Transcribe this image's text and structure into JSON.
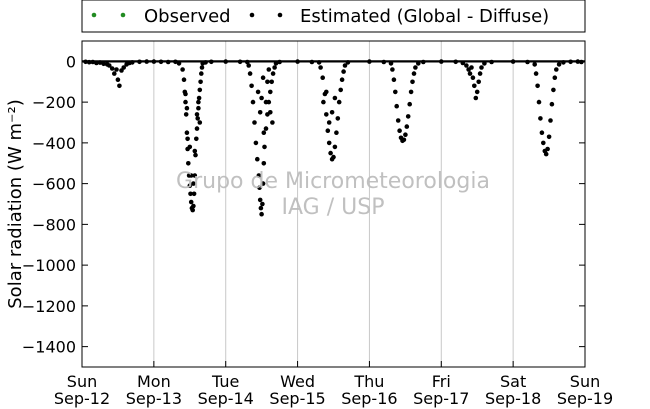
{
  "chart_data": {
    "type": "scatter",
    "title": "",
    "xlabel": "",
    "ylabel": "Solar radiation (W m⁻²)",
    "ylim": [
      -1500,
      100
    ],
    "xlim": [
      0,
      7
    ],
    "yticks": [
      0,
      -200,
      -400,
      -600,
      -800,
      -1000,
      -1200,
      -1400
    ],
    "xticks": [
      {
        "x": 0,
        "line1": "Sun",
        "line2": "Sep-12"
      },
      {
        "x": 1,
        "line1": "Mon",
        "line2": "Sep-13"
      },
      {
        "x": 2,
        "line1": "Tue",
        "line2": "Sep-14"
      },
      {
        "x": 3,
        "line1": "Wed",
        "line2": "Sep-15"
      },
      {
        "x": 4,
        "line1": "Thu",
        "line2": "Sep-16"
      },
      {
        "x": 5,
        "line1": "Fri",
        "line2": "Sep-17"
      },
      {
        "x": 6,
        "line1": "Sat",
        "line2": "Sep-18"
      },
      {
        "x": 7,
        "line1": "Sun",
        "line2": "Sep-19"
      }
    ],
    "grid": "vertical",
    "legend_position": "top",
    "legend": [
      {
        "label": "Observed",
        "color": "#228b22"
      },
      {
        "label": "Estimated (Global - Diffuse)",
        "color": "#000000"
      }
    ],
    "watermark": [
      "Grupo de Micrometeorologia",
      "IAG / USP"
    ],
    "series": [
      {
        "name": "Estimated (Global - Diffuse)",
        "color": "#000000",
        "points": [
          [
            0.05,
            -2
          ],
          [
            0.1,
            -4
          ],
          [
            0.15,
            -3
          ],
          [
            0.2,
            -8
          ],
          [
            0.25,
            -6
          ],
          [
            0.3,
            -12
          ],
          [
            0.35,
            -15
          ],
          [
            0.38,
            -20
          ],
          [
            0.42,
            -35
          ],
          [
            0.45,
            -60
          ],
          [
            0.48,
            -40
          ],
          [
            0.5,
            -90
          ],
          [
            0.52,
            -120
          ],
          [
            0.55,
            -45
          ],
          [
            0.58,
            -30
          ],
          [
            0.62,
            -15
          ],
          [
            0.66,
            -8
          ],
          [
            0.7,
            -5
          ],
          [
            0.8,
            -2
          ],
          [
            0.9,
            -1
          ],
          [
            1.0,
            -1
          ],
          [
            1.1,
            -2
          ],
          [
            1.2,
            -3
          ],
          [
            1.3,
            -2
          ],
          [
            1.35,
            -10
          ],
          [
            1.4,
            -40
          ],
          [
            1.42,
            -90
          ],
          [
            1.43,
            -150
          ],
          [
            1.44,
            -200
          ],
          [
            1.45,
            -260
          ],
          [
            1.46,
            -350
          ],
          [
            1.47,
            -430
          ],
          [
            1.48,
            -500
          ],
          [
            1.49,
            -560
          ],
          [
            1.5,
            -610
          ],
          [
            1.51,
            -650
          ],
          [
            1.52,
            -690
          ],
          [
            1.53,
            -720
          ],
          [
            1.54,
            -730
          ],
          [
            1.55,
            -710
          ],
          [
            1.56,
            -650
          ],
          [
            1.57,
            -560
          ],
          [
            1.58,
            -460
          ],
          [
            1.59,
            -380
          ],
          [
            1.6,
            -330
          ],
          [
            1.61,
            -280
          ],
          [
            1.62,
            -230
          ],
          [
            1.63,
            -180
          ],
          [
            1.64,
            -140
          ],
          [
            1.65,
            -100
          ],
          [
            1.66,
            -60
          ],
          [
            1.67,
            -30
          ],
          [
            1.68,
            -10
          ],
          [
            1.72,
            -5
          ],
          [
            1.8,
            -2
          ],
          [
            1.47,
            -380
          ],
          [
            1.5,
            -420
          ],
          [
            1.52,
            -560
          ],
          [
            1.55,
            -600
          ],
          [
            1.57,
            -440
          ],
          [
            1.6,
            -260
          ],
          [
            1.62,
            -200
          ],
          [
            1.64,
            -300
          ],
          [
            1.44,
            -160
          ],
          [
            1.46,
            -230
          ],
          [
            2.0,
            -1
          ],
          [
            2.2,
            -2
          ],
          [
            2.3,
            -3
          ],
          [
            2.32,
            -20
          ],
          [
            2.34,
            -60
          ],
          [
            2.36,
            -120
          ],
          [
            2.38,
            -200
          ],
          [
            2.4,
            -300
          ],
          [
            2.42,
            -400
          ],
          [
            2.44,
            -480
          ],
          [
            2.46,
            -560
          ],
          [
            2.47,
            -620
          ],
          [
            2.48,
            -680
          ],
          [
            2.49,
            -720
          ],
          [
            2.5,
            -750
          ],
          [
            2.51,
            -700
          ],
          [
            2.52,
            -600
          ],
          [
            2.53,
            -500
          ],
          [
            2.54,
            -420
          ],
          [
            2.56,
            -330
          ],
          [
            2.58,
            -260
          ],
          [
            2.6,
            -200
          ],
          [
            2.62,
            -150
          ],
          [
            2.64,
            -100
          ],
          [
            2.66,
            -60
          ],
          [
            2.68,
            -30
          ],
          [
            2.7,
            -10
          ],
          [
            2.75,
            -3
          ],
          [
            2.45,
            -150
          ],
          [
            2.48,
            -250
          ],
          [
            2.5,
            -180
          ],
          [
            2.53,
            -350
          ],
          [
            2.56,
            -200
          ],
          [
            2.58,
            -100
          ],
          [
            2.6,
            -40
          ],
          [
            2.62,
            -250
          ],
          [
            2.65,
            -300
          ],
          [
            2.52,
            -80
          ],
          [
            3.0,
            -1
          ],
          [
            3.2,
            -3
          ],
          [
            3.3,
            -5
          ],
          [
            3.32,
            -30
          ],
          [
            3.35,
            -80
          ],
          [
            3.38,
            -160
          ],
          [
            3.4,
            -260
          ],
          [
            3.42,
            -340
          ],
          [
            3.44,
            -400
          ],
          [
            3.46,
            -450
          ],
          [
            3.48,
            -480
          ],
          [
            3.5,
            -470
          ],
          [
            3.52,
            -420
          ],
          [
            3.54,
            -350
          ],
          [
            3.56,
            -280
          ],
          [
            3.58,
            -200
          ],
          [
            3.6,
            -140
          ],
          [
            3.62,
            -90
          ],
          [
            3.64,
            -50
          ],
          [
            3.66,
            -20
          ],
          [
            3.7,
            -5
          ],
          [
            3.36,
            -200
          ],
          [
            3.4,
            -150
          ],
          [
            3.44,
            -300
          ],
          [
            3.48,
            -250
          ],
          [
            3.52,
            -180
          ],
          [
            4.0,
            -1
          ],
          [
            4.2,
            -3
          ],
          [
            4.3,
            -10
          ],
          [
            4.32,
            -40
          ],
          [
            4.34,
            -90
          ],
          [
            4.36,
            -150
          ],
          [
            4.38,
            -220
          ],
          [
            4.4,
            -290
          ],
          [
            4.42,
            -340
          ],
          [
            4.44,
            -375
          ],
          [
            4.46,
            -390
          ],
          [
            4.48,
            -385
          ],
          [
            4.5,
            -360
          ],
          [
            4.52,
            -320
          ],
          [
            4.54,
            -270
          ],
          [
            4.56,
            -210
          ],
          [
            4.58,
            -150
          ],
          [
            4.6,
            -100
          ],
          [
            4.62,
            -60
          ],
          [
            4.64,
            -30
          ],
          [
            4.68,
            -10
          ],
          [
            4.75,
            -3
          ],
          [
            5.0,
            -1
          ],
          [
            5.2,
            -2
          ],
          [
            5.3,
            -8
          ],
          [
            5.35,
            -20
          ],
          [
            5.38,
            -40
          ],
          [
            5.4,
            -60
          ],
          [
            5.42,
            -30
          ],
          [
            5.44,
            -80
          ],
          [
            5.46,
            -120
          ],
          [
            5.48,
            -180
          ],
          [
            5.5,
            -150
          ],
          [
            5.52,
            -100
          ],
          [
            5.54,
            -60
          ],
          [
            5.56,
            -30
          ],
          [
            5.6,
            -10
          ],
          [
            5.7,
            -3
          ],
          [
            6.0,
            -1
          ],
          [
            6.2,
            -3
          ],
          [
            6.3,
            -15
          ],
          [
            6.32,
            -60
          ],
          [
            6.34,
            -120
          ],
          [
            6.36,
            -200
          ],
          [
            6.38,
            -280
          ],
          [
            6.4,
            -350
          ],
          [
            6.42,
            -400
          ],
          [
            6.44,
            -440
          ],
          [
            6.46,
            -455
          ],
          [
            6.48,
            -430
          ],
          [
            6.5,
            -370
          ],
          [
            6.52,
            -290
          ],
          [
            6.54,
            -210
          ],
          [
            6.56,
            -140
          ],
          [
            6.58,
            -80
          ],
          [
            6.6,
            -40
          ],
          [
            6.64,
            -15
          ],
          [
            6.7,
            -5
          ],
          [
            6.8,
            -2
          ],
          [
            6.9,
            -1
          ],
          [
            6.95,
            -3
          ]
        ]
      }
    ]
  }
}
